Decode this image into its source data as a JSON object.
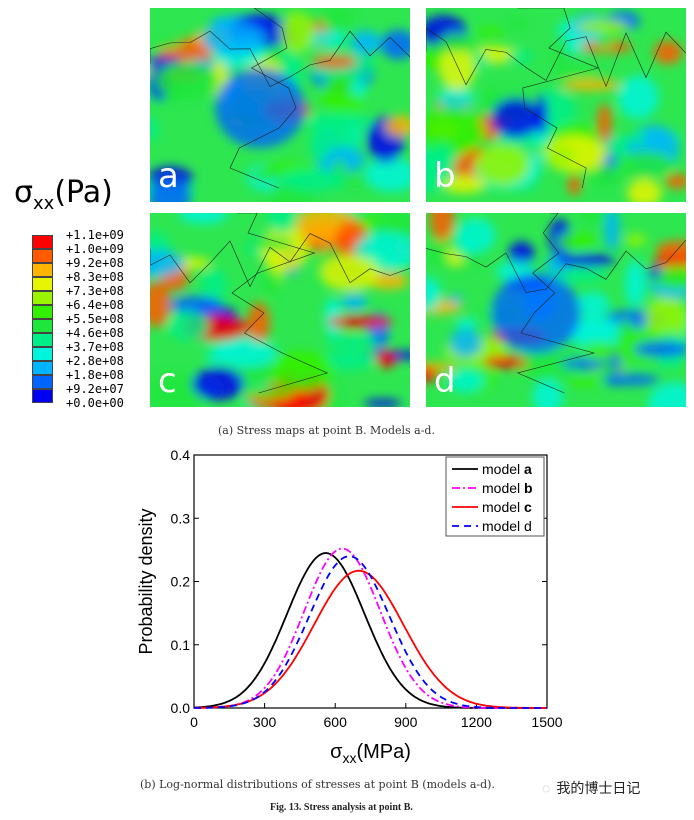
{
  "legend_title": {
    "symbol": "σ",
    "subscript": "xx",
    "unit": "(Pa)"
  },
  "colorbar": {
    "labels": [
      "+1.1e+09",
      "+1.0e+09",
      "+9.2e+08",
      "+8.3e+08",
      "+7.3e+08",
      "+6.4e+08",
      "+5.5e+08",
      "+4.6e+08",
      "+3.7e+08",
      "+2.8e+08",
      "+1.8e+08",
      "+9.2e+07",
      "+0.0e+00"
    ],
    "colors": [
      "#ff0000",
      "#ff5a00",
      "#ffb400",
      "#e6f500",
      "#99f500",
      "#33f000",
      "#1ee63c",
      "#00ee88",
      "#00f5dc",
      "#00b4ff",
      "#0064ff",
      "#0000f0"
    ]
  },
  "maps": [
    {
      "label": "a"
    },
    {
      "label": "b"
    },
    {
      "label": "c"
    },
    {
      "label": "d"
    }
  ],
  "caption_a": "(a) Stress maps at point B. Models a-d.",
  "caption_b": "(b) Log-normal distributions of stresses at point B (models a-d).",
  "figure_caption": "Fig. 13. Stress analysis at point B.",
  "watermark": "我的博士日记",
  "chart_data": {
    "type": "line",
    "xlabel": "σxx(MPa)",
    "ylabel": "Probability density",
    "xlim": [
      0,
      1500
    ],
    "ylim": [
      0,
      0.4
    ],
    "xticks": [
      "0",
      "300",
      "600",
      "900",
      "1200",
      "1500"
    ],
    "yticks": [
      "0.0",
      "0.1",
      "0.2",
      "0.3",
      "0.4"
    ],
    "legend_position": "top-right",
    "series": [
      {
        "name": "model a",
        "color": "#000000",
        "dash": "",
        "peak_x": 560,
        "peak_y": 0.245,
        "sd": 165
      },
      {
        "name": "model b",
        "color": "#ff00ff",
        "dash": "8 3 2 3",
        "peak_x": 630,
        "peak_y": 0.252,
        "sd": 162
      },
      {
        "name": "model c",
        "color": "#ff0000",
        "dash": "",
        "peak_x": 700,
        "peak_y": 0.217,
        "sd": 190
      },
      {
        "name": "model d",
        "color": "#0000ff",
        "dash": "7 5",
        "peak_x": 660,
        "peak_y": 0.24,
        "sd": 170
      }
    ]
  }
}
